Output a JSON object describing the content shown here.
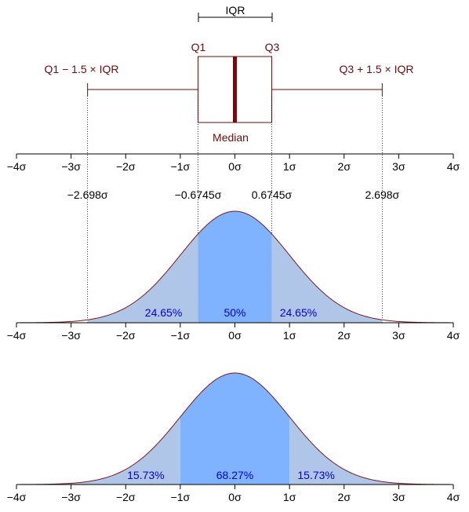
{
  "boxplot": {
    "iqr_label": "IQR",
    "q1_label": "Q1",
    "q3_label": "Q3",
    "lower_fence_label": "Q1 − 1.5 × IQR",
    "upper_fence_label": "Q3 + 1.5 × IQR",
    "median_label": "Median",
    "q1": -0.6745,
    "q3": 0.6745,
    "median": 0,
    "lower_whisker": -2.698,
    "upper_whisker": 2.698
  },
  "axis": {
    "ticks": [
      -4,
      -3,
      -2,
      -1,
      0,
      1,
      2,
      3,
      4
    ],
    "tick_labels": [
      "−4σ",
      "−3σ",
      "−2σ",
      "−1σ",
      "0σ",
      "1σ",
      "2σ",
      "3σ",
      "4σ"
    ]
  },
  "quantile_labels": [
    {
      "value": -2.698,
      "text": "−2.698σ"
    },
    {
      "value": -0.6745,
      "text": "−0.6745σ"
    },
    {
      "value": 0.6745,
      "text": "0.6745σ"
    },
    {
      "value": 2.698,
      "text": "2.698σ"
    }
  ],
  "pdf_iqr": {
    "regions": [
      {
        "from": -2.698,
        "to": -0.6745,
        "percent": "24.65%"
      },
      {
        "from": -0.6745,
        "to": 0.6745,
        "percent": "50%"
      },
      {
        "from": 0.6745,
        "to": 2.698,
        "percent": "24.65%"
      }
    ]
  },
  "pdf_sigma": {
    "regions": [
      {
        "from": -4,
        "to": -1,
        "percent": "15.73%"
      },
      {
        "from": -1,
        "to": 1,
        "percent": "68.27%"
      },
      {
        "from": 1,
        "to": 4,
        "percent": "15.73%"
      }
    ]
  },
  "colors": {
    "curve": "#7a1a1a",
    "box": "#6a0d0d",
    "median_line": "#8b0000",
    "center_fill": "#80b3ff",
    "side_fill": "#b0c6e8",
    "percent_text": "#0000d4"
  }
}
